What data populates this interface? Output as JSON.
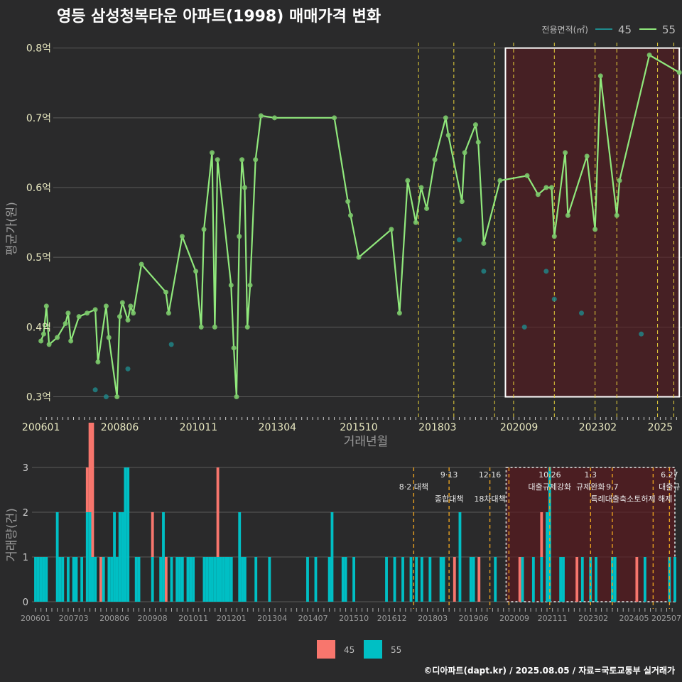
{
  "title": "영등 삼성청복타운 아파트(1998) 매매가격 변화",
  "footer": "©디아파트(dapt.kr) / 2025.08.05 / 자료=국토교통부 실거래가",
  "colors": {
    "bg": "#2a2a2b",
    "s45_line": "#1f8a8c",
    "s55_line": "#90e87c",
    "vline": "#e8d23a",
    "vline2": "#e8a020",
    "bar45": "#f8766d",
    "bar55": "#00bfc4",
    "highlight": "#5a1a1f"
  },
  "chart_data": [
    {
      "type": "line",
      "xlabel": "거래년월",
      "ylabel": "평균가(원)",
      "ylim": [
        0.27,
        0.82
      ],
      "y_ticks": [
        {
          "v": 0.3,
          "label": "0.3억"
        },
        {
          "v": 0.4,
          "label": "0.4억"
        },
        {
          "v": 0.5,
          "label": "0.5억"
        },
        {
          "v": 0.6,
          "label": "0.6억"
        },
        {
          "v": 0.7,
          "label": "0.7억"
        },
        {
          "v": 0.8,
          "label": "0.8억"
        }
      ],
      "x_ticks": [
        "200601",
        "200806",
        "201011",
        "201304",
        "201510",
        "201803",
        "202009",
        "202302",
        "2025"
      ],
      "legend": {
        "title": "전용면적(㎡)",
        "items": [
          "45",
          "55"
        ],
        "placement": "top-right"
      },
      "highlight_range": {
        "x_from": "2020-04",
        "x_to": "2025-08",
        "y_from": 0.3,
        "y_to": 0.8
      },
      "policy_dates": [
        "2017-08",
        "2018-09",
        "2019-12",
        "2020-07",
        "2021-10",
        "2023-01",
        "2023-09",
        "2024-12",
        "2025-06"
      ],
      "series": [
        {
          "name": "55",
          "points": [
            [
              "2006-01",
              0.38
            ],
            [
              "2006-02",
              0.39
            ],
            [
              "2006-03",
              0.43
            ],
            [
              "2006-04",
              0.375
            ],
            [
              "2006-07",
              0.385
            ],
            [
              "2006-10",
              0.405
            ],
            [
              "2006-11",
              0.42
            ],
            [
              "2006-12",
              0.38
            ],
            [
              "2007-03",
              0.415
            ],
            [
              "2007-06",
              0.42
            ],
            [
              "2007-09",
              0.425
            ],
            [
              "2007-10",
              0.35
            ],
            [
              "2008-01",
              0.43
            ],
            [
              "2008-02",
              0.385
            ],
            [
              "2008-05",
              0.3
            ],
            [
              "2008-06",
              0.415
            ],
            [
              "2008-07",
              0.435
            ],
            [
              "2008-09",
              0.41
            ],
            [
              "2008-10",
              0.43
            ],
            [
              "2008-11",
              0.42
            ],
            [
              "2009-02",
              0.49
            ],
            [
              "2009-11",
              0.45
            ],
            [
              "2009-12",
              0.42
            ],
            [
              "2010-05",
              0.53
            ],
            [
              "2010-10",
              0.48
            ],
            [
              "2010-12",
              0.4
            ],
            [
              "2011-01",
              0.54
            ],
            [
              "2011-04",
              0.65
            ],
            [
              "2011-05",
              0.4
            ],
            [
              "2011-06",
              0.64
            ],
            [
              "2011-11",
              0.46
            ],
            [
              "2011-12",
              0.37
            ],
            [
              "2012-01",
              0.3
            ],
            [
              "2012-02",
              0.53
            ],
            [
              "2012-03",
              0.64
            ],
            [
              "2012-04",
              0.6
            ],
            [
              "2012-05",
              0.4
            ],
            [
              "2012-06",
              0.46
            ],
            [
              "2012-08",
              0.64
            ],
            [
              "2012-10",
              0.703
            ],
            [
              "2013-03",
              0.7
            ],
            [
              "2015-01",
              0.7
            ],
            [
              "2015-06",
              0.58
            ],
            [
              "2015-07",
              0.56
            ],
            [
              "2015-10",
              0.5
            ],
            [
              "2016-10",
              0.54
            ],
            [
              "2017-01",
              0.42
            ],
            [
              "2017-04",
              0.61
            ],
            [
              "2017-07",
              0.55
            ],
            [
              "2017-09",
              0.6
            ],
            [
              "2017-11",
              0.57
            ],
            [
              "2018-02",
              0.64
            ],
            [
              "2018-06",
              0.7
            ],
            [
              "2018-07",
              0.675
            ],
            [
              "2018-12",
              0.58
            ],
            [
              "2019-01",
              0.65
            ],
            [
              "2019-05",
              0.69
            ],
            [
              "2019-06",
              0.665
            ],
            [
              "2019-08",
              0.52
            ],
            [
              "2020-02",
              0.61
            ],
            [
              "2020-12",
              0.617
            ],
            [
              "2021-04",
              0.59
            ],
            [
              "2021-07",
              0.6
            ],
            [
              "2021-09",
              0.6
            ],
            [
              "2021-10",
              0.53
            ],
            [
              "2022-02",
              0.65
            ],
            [
              "2022-03",
              0.56
            ],
            [
              "2022-10",
              0.645
            ],
            [
              "2023-01",
              0.54
            ],
            [
              "2023-03",
              0.76
            ],
            [
              "2023-09",
              0.56
            ],
            [
              "2023-10",
              0.61
            ],
            [
              "2024-09",
              0.79
            ],
            [
              "2025-08",
              0.765
            ]
          ]
        },
        {
          "name": "45",
          "points": [
            [
              "2007-09",
              0.31
            ],
            [
              "2008-01",
              0.3
            ],
            [
              "2008-09",
              0.34
            ],
            [
              "2010-01",
              0.375
            ],
            [
              "2018-11",
              0.525
            ],
            [
              "2019-08",
              0.48
            ],
            [
              "2020-11",
              0.4
            ],
            [
              "2021-07",
              0.48
            ],
            [
              "2021-10",
              0.44
            ],
            [
              "2022-08",
              0.42
            ],
            [
              "2024-06",
              0.39
            ]
          ]
        }
      ]
    },
    {
      "type": "bar",
      "xlabel": "",
      "ylabel": "거래량(건)",
      "ylim": [
        0,
        3
      ],
      "y_ticks": [
        "0",
        "1",
        "2",
        "3"
      ],
      "x_ticks": [
        "200601",
        "200703",
        "200806",
        "200908",
        "201011",
        "201201",
        "201304",
        "201407",
        "201510",
        "201612",
        "201803",
        "201906",
        "202009",
        "202111",
        "202302",
        "202405",
        "202507"
      ],
      "legend": {
        "items": [
          "45",
          "55"
        ],
        "placement": "bottom"
      },
      "highlight_range": {
        "x_from": "2020-06",
        "x_to": "2025-08"
      },
      "annotations": [
        {
          "date": "2017-08",
          "label": "8·2 대책",
          "row": 1
        },
        {
          "date": "2018-09",
          "label": "9·13",
          "row": 0
        },
        {
          "date": "2018-09",
          "label": "종합대책",
          "row": 2
        },
        {
          "date": "2019-12",
          "label": "12·16",
          "row": 0
        },
        {
          "date": "2019-12",
          "label": "18차대책",
          "row": 2
        },
        {
          "date": "2021-10",
          "label": "10.26",
          "row": 0
        },
        {
          "date": "2021-10",
          "label": "대출규제강화",
          "row": 1
        },
        {
          "date": "2023-01",
          "label": "1.3",
          "row": 0
        },
        {
          "date": "2023-01",
          "label": "규제완화",
          "row": 1
        },
        {
          "date": "2023-09",
          "label": "9.7",
          "row": 1
        },
        {
          "date": "2023-09",
          "label": "특례대출축소",
          "row": 2
        },
        {
          "date": "2024-12",
          "label": "토허제 해제",
          "row": 2
        },
        {
          "date": "2025-06",
          "label": "6.27",
          "row": 0
        },
        {
          "date": "2025-06",
          "label": "대출규",
          "row": 1
        }
      ],
      "series": [
        {
          "name": "55",
          "counts": [
            [
              "2006-01",
              1
            ],
            [
              "2006-02",
              1
            ],
            [
              "2006-03",
              1
            ],
            [
              "2006-04",
              1
            ],
            [
              "2006-05",
              1
            ],
            [
              "2006-09",
              2
            ],
            [
              "2006-10",
              1
            ],
            [
              "2006-11",
              1
            ],
            [
              "2007-01",
              1
            ],
            [
              "2007-03",
              1
            ],
            [
              "2007-04",
              1
            ],
            [
              "2007-06",
              1
            ],
            [
              "2007-08",
              2
            ],
            [
              "2007-09",
              2
            ],
            [
              "2007-10",
              1
            ],
            [
              "2007-11",
              1
            ],
            [
              "2008-02",
              1
            ],
            [
              "2008-04",
              1
            ],
            [
              "2008-05",
              1
            ],
            [
              "2008-06",
              2
            ],
            [
              "2008-07",
              1
            ],
            [
              "2008-08",
              2
            ],
            [
              "2008-09",
              2
            ],
            [
              "2008-10",
              3
            ],
            [
              "2008-11",
              3
            ],
            [
              "2009-02",
              1
            ],
            [
              "2009-03",
              1
            ],
            [
              "2009-08",
              1
            ],
            [
              "2009-11",
              1
            ],
            [
              "2009-12",
              2
            ],
            [
              "2010-03",
              1
            ],
            [
              "2010-05",
              1
            ],
            [
              "2010-06",
              1
            ],
            [
              "2010-07",
              1
            ],
            [
              "2010-09",
              1
            ],
            [
              "2010-10",
              1
            ],
            [
              "2010-11",
              1
            ],
            [
              "2011-03",
              1
            ],
            [
              "2011-04",
              1
            ],
            [
              "2011-05",
              1
            ],
            [
              "2011-06",
              1
            ],
            [
              "2011-07",
              1
            ],
            [
              "2011-08",
              1
            ],
            [
              "2011-09",
              1
            ],
            [
              "2011-10",
              1
            ],
            [
              "2011-11",
              1
            ],
            [
              "2011-12",
              1
            ],
            [
              "2012-01",
              1
            ],
            [
              "2012-04",
              2
            ],
            [
              "2012-05",
              1
            ],
            [
              "2012-06",
              1
            ],
            [
              "2012-10",
              1
            ],
            [
              "2013-03",
              1
            ],
            [
              "2014-05",
              1
            ],
            [
              "2014-08",
              1
            ],
            [
              "2015-01",
              1
            ],
            [
              "2015-02",
              2
            ],
            [
              "2015-06",
              1
            ],
            [
              "2015-07",
              1
            ],
            [
              "2015-10",
              1
            ],
            [
              "2016-10",
              1
            ],
            [
              "2017-01",
              1
            ],
            [
              "2017-04",
              1
            ],
            [
              "2017-07",
              1
            ],
            [
              "2017-09",
              1
            ],
            [
              "2017-11",
              1
            ],
            [
              "2018-02",
              1
            ],
            [
              "2018-06",
              1
            ],
            [
              "2018-07",
              1
            ],
            [
              "2019-01",
              2
            ],
            [
              "2019-05",
              1
            ],
            [
              "2019-06",
              1
            ],
            [
              "2020-02",
              1
            ],
            [
              "2020-12",
              1
            ],
            [
              "2021-04",
              1
            ],
            [
              "2021-07",
              1
            ],
            [
              "2021-09",
              2
            ],
            [
              "2021-10",
              3
            ],
            [
              "2022-02",
              1
            ],
            [
              "2022-03",
              1
            ],
            [
              "2022-10",
              1
            ],
            [
              "2023-01",
              1
            ],
            [
              "2023-03",
              1
            ],
            [
              "2023-09",
              1
            ],
            [
              "2023-10",
              1
            ],
            [
              "2024-09",
              1
            ],
            [
              "2025-06",
              1
            ],
            [
              "2025-08",
              1
            ]
          ]
        },
        {
          "name": "45",
          "counts": [
            [
              "2007-08",
              1
            ],
            [
              "2007-09",
              2
            ],
            [
              "2007-10",
              3
            ],
            [
              "2008-01",
              1
            ],
            [
              "2009-08",
              1
            ],
            [
              "2010-01",
              1
            ],
            [
              "2011-08",
              2
            ],
            [
              "2018-11",
              1
            ],
            [
              "2019-08",
              1
            ],
            [
              "2020-11",
              1
            ],
            [
              "2021-07",
              1
            ],
            [
              "2022-08",
              1
            ],
            [
              "2024-06",
              1
            ]
          ]
        }
      ]
    }
  ]
}
